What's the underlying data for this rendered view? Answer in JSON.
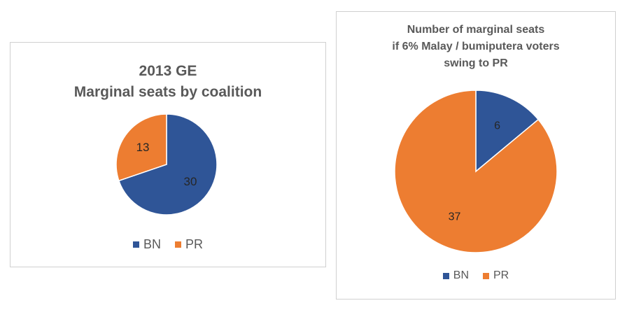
{
  "colors": {
    "BN": "#2f5597",
    "PR": "#ed7d31",
    "text": "#595959"
  },
  "chart_data": [
    {
      "type": "pie",
      "title": [
        "2013 GE",
        "Marginal seats by coalition"
      ],
      "labels": [
        "BN",
        "PR"
      ],
      "values": [
        30,
        13
      ],
      "legend": {
        "position": "bottom",
        "items": [
          "BN",
          "PR"
        ]
      }
    },
    {
      "type": "pie",
      "title": [
        "Number of marginal seats",
        "if 6% Malay / bumiputera voters",
        "swing to PR"
      ],
      "labels": [
        "BN",
        "PR"
      ],
      "values": [
        6,
        37
      ],
      "legend": {
        "position": "bottom",
        "items": [
          "BN",
          "PR"
        ]
      }
    }
  ]
}
